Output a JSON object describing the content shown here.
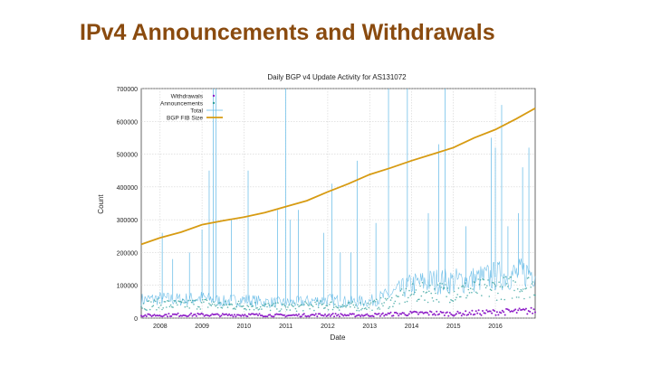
{
  "slide": {
    "title": "IPv4 Announcements and Withdrawals"
  },
  "colors": {
    "title": "#8a4b0f",
    "withdrawals": "#8e1fc7",
    "announcements": "#2f9f9a",
    "total": "#5fb8e6",
    "fib": "#d79b12"
  },
  "chart_data": {
    "type": "line",
    "title": "Daily BGP v4 Update Activity for AS131072",
    "xlabel": "Date",
    "ylabel": "Count",
    "xlim": [
      2007.55,
      2016.95
    ],
    "ylim": [
      0,
      700000
    ],
    "x_ticks": [
      {
        "value": 2008.0,
        "label": "2008"
      },
      {
        "value": 2009.0,
        "label": "2009"
      },
      {
        "value": 2010.0,
        "label": "2010"
      },
      {
        "value": 2011.0,
        "label": "2011"
      },
      {
        "value": 2012.0,
        "label": "2012"
      },
      {
        "value": 2013.0,
        "label": "2013"
      },
      {
        "value": 2014.0,
        "label": "2014"
      },
      {
        "value": 2015.0,
        "label": "2015"
      },
      {
        "value": 2016.0,
        "label": "2016"
      }
    ],
    "y_ticks": [
      0,
      100000,
      200000,
      300000,
      400000,
      500000,
      600000,
      700000
    ],
    "grid": true,
    "legend_position": "top-left",
    "series": [
      {
        "name": "Withdrawals",
        "style": "points",
        "x": [
          2007.6,
          2008.0,
          2008.5,
          2009.0,
          2009.5,
          2010.0,
          2010.5,
          2011.0,
          2011.5,
          2012.0,
          2012.5,
          2013.0,
          2013.5,
          2014.0,
          2014.5,
          2015.0,
          2015.5,
          2016.0,
          2016.5,
          2016.95
        ],
        "values": [
          8000,
          9000,
          10000,
          10000,
          9000,
          10000,
          9000,
          8000,
          9000,
          10000,
          9000,
          9000,
          12000,
          14000,
          15000,
          13000,
          16000,
          18000,
          20000,
          22000
        ]
      },
      {
        "name": "Announcements",
        "style": "points",
        "x": [
          2007.6,
          2008.0,
          2008.5,
          2009.0,
          2009.5,
          2010.0,
          2010.5,
          2011.0,
          2011.5,
          2012.0,
          2012.5,
          2013.0,
          2013.5,
          2014.0,
          2014.5,
          2015.0,
          2015.5,
          2016.0,
          2016.5,
          2016.95
        ],
        "values": [
          40000,
          42000,
          40000,
          45000,
          38000,
          40000,
          35000,
          32000,
          36000,
          40000,
          35000,
          38000,
          50000,
          75000,
          80000,
          80000,
          85000,
          90000,
          95000,
          100000
        ]
      },
      {
        "name": "Total",
        "style": "line",
        "x": [
          2007.6,
          2008.0,
          2008.5,
          2009.0,
          2009.5,
          2010.0,
          2010.5,
          2011.0,
          2011.5,
          2012.0,
          2012.5,
          2013.0,
          2013.5,
          2014.0,
          2014.5,
          2015.0,
          2015.5,
          2016.0,
          2016.5,
          2016.95
        ],
        "values": [
          55000,
          58000,
          55000,
          60000,
          50000,
          55000,
          48000,
          45000,
          50000,
          55000,
          48000,
          50000,
          70000,
          100000,
          110000,
          110000,
          115000,
          125000,
          130000,
          140000
        ],
        "spikes": [
          {
            "x": 2008.05,
            "value": 260000
          },
          {
            "x": 2008.3,
            "value": 180000
          },
          {
            "x": 2008.7,
            "value": 200000
          },
          {
            "x": 2009.0,
            "value": 270000
          },
          {
            "x": 2009.17,
            "value": 450000
          },
          {
            "x": 2009.27,
            "value": 700000
          },
          {
            "x": 2009.33,
            "value": 700000
          },
          {
            "x": 2009.7,
            "value": 300000
          },
          {
            "x": 2010.1,
            "value": 450000
          },
          {
            "x": 2010.8,
            "value": 330000
          },
          {
            "x": 2011.0,
            "value": 700000
          },
          {
            "x": 2011.1,
            "value": 300000
          },
          {
            "x": 2011.3,
            "value": 330000
          },
          {
            "x": 2011.9,
            "value": 260000
          },
          {
            "x": 2012.1,
            "value": 410000
          },
          {
            "x": 2012.3,
            "value": 200000
          },
          {
            "x": 2012.55,
            "value": 200000
          },
          {
            "x": 2012.7,
            "value": 480000
          },
          {
            "x": 2013.15,
            "value": 290000
          },
          {
            "x": 2013.45,
            "value": 700000
          },
          {
            "x": 2013.9,
            "value": 700000
          },
          {
            "x": 2014.4,
            "value": 320000
          },
          {
            "x": 2014.65,
            "value": 530000
          },
          {
            "x": 2014.8,
            "value": 700000
          },
          {
            "x": 2015.3,
            "value": 280000
          },
          {
            "x": 2015.9,
            "value": 550000
          },
          {
            "x": 2016.0,
            "value": 520000
          },
          {
            "x": 2016.15,
            "value": 650000
          },
          {
            "x": 2016.3,
            "value": 280000
          },
          {
            "x": 2016.55,
            "value": 320000
          },
          {
            "x": 2016.65,
            "value": 460000
          },
          {
            "x": 2016.8,
            "value": 520000
          }
        ]
      },
      {
        "name": "BGP FIB Size",
        "style": "line",
        "x": [
          2007.55,
          2008.0,
          2008.5,
          2009.0,
          2009.5,
          2010.0,
          2010.5,
          2011.0,
          2011.5,
          2012.0,
          2012.5,
          2013.0,
          2013.5,
          2014.0,
          2014.5,
          2015.0,
          2015.5,
          2016.0,
          2016.5,
          2016.95
        ],
        "values": [
          225000,
          245000,
          262000,
          285000,
          297000,
          308000,
          322000,
          340000,
          358000,
          385000,
          410000,
          438000,
          458000,
          480000,
          500000,
          520000,
          550000,
          575000,
          608000,
          640000
        ]
      }
    ]
  }
}
